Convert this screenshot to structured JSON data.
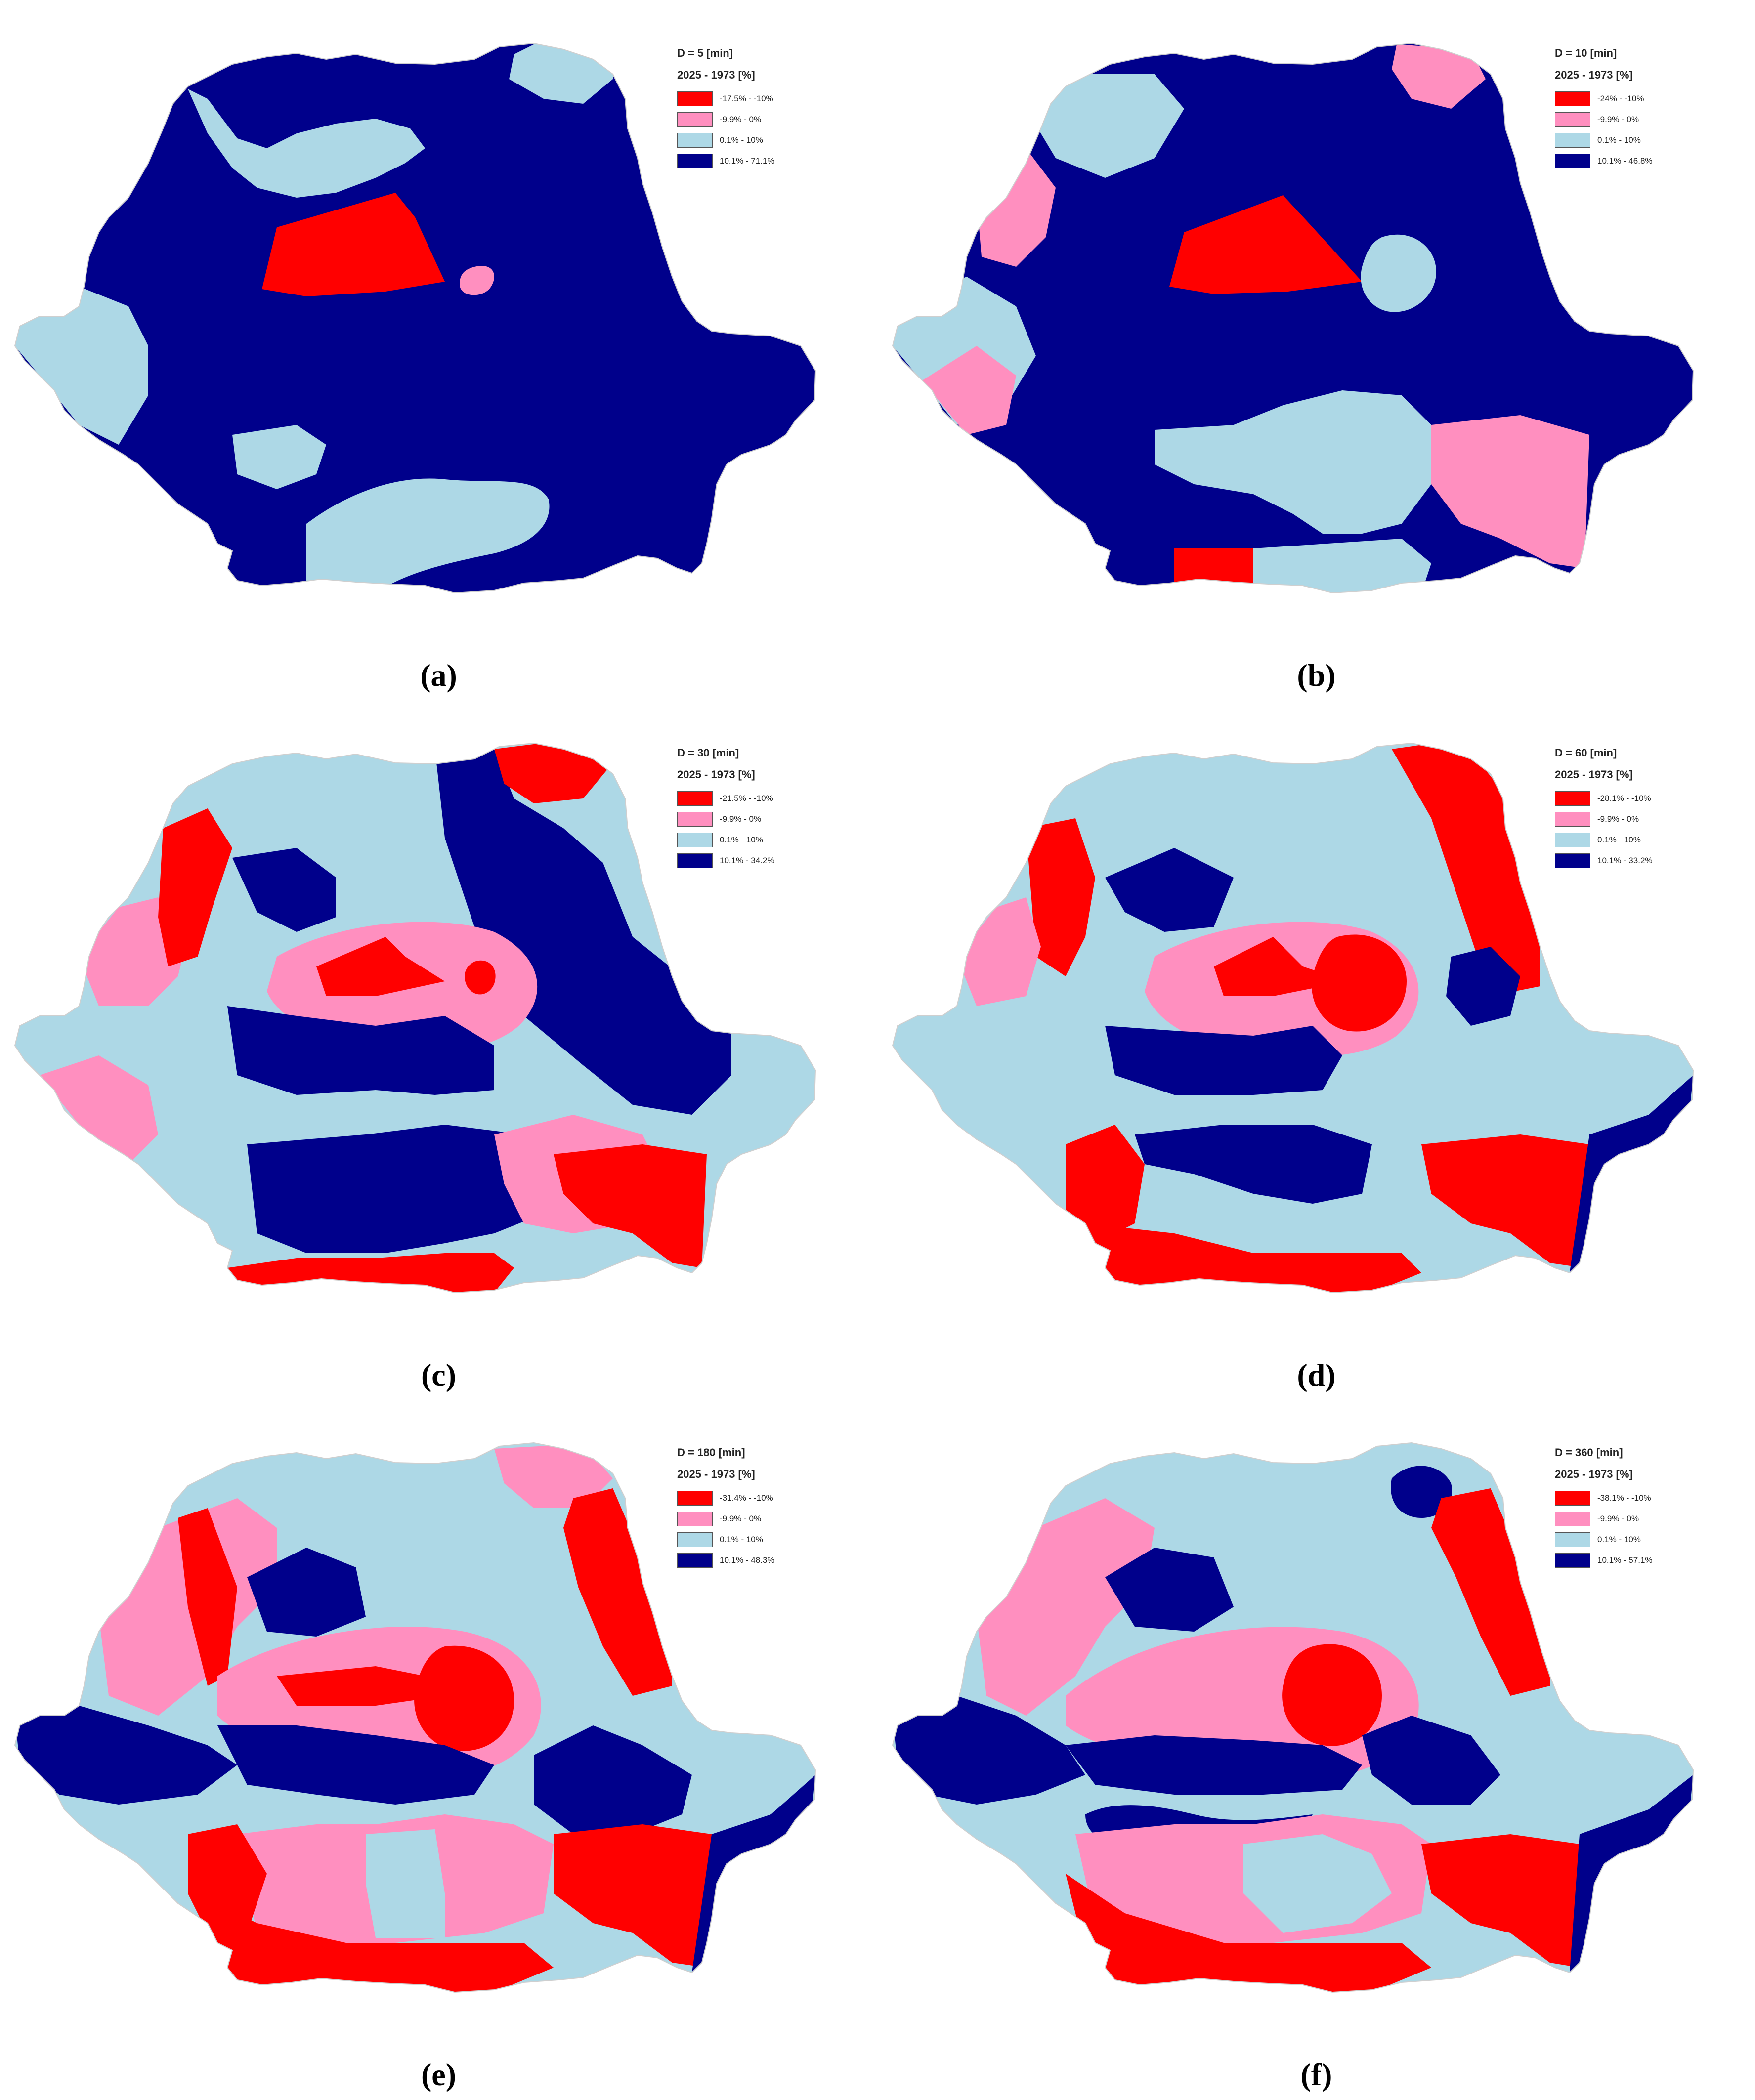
{
  "colors": {
    "red": "#ff0000",
    "pink": "#ff8fbf",
    "light_blue": "#add8e6",
    "navy": "#00008b"
  },
  "panels": [
    {
      "caption": "(a)",
      "duration_label": "D = 5 [min]",
      "period_label": "2025 - 1973 [%]",
      "legend": [
        {
          "color": "red",
          "label": "-17.5% - -10%"
        },
        {
          "color": "pink",
          "label": "-9.9% - 0%"
        },
        {
          "color": "light_blue",
          "label": "0.1% - 10%"
        },
        {
          "color": "navy",
          "label": "10.1% - 71.1%"
        }
      ]
    },
    {
      "caption": "(b)",
      "duration_label": "D = 10 [min]",
      "period_label": "2025 - 1973 [%]",
      "legend": [
        {
          "color": "red",
          "label": "-24% - -10%"
        },
        {
          "color": "pink",
          "label": "-9.9% - 0%"
        },
        {
          "color": "light_blue",
          "label": "0.1% - 10%"
        },
        {
          "color": "navy",
          "label": "10.1% - 46.8%"
        }
      ]
    },
    {
      "caption": "(c)",
      "duration_label": "D = 30 [min]",
      "period_label": "2025 - 1973 [%]",
      "legend": [
        {
          "color": "red",
          "label": "-21.5% - -10%"
        },
        {
          "color": "pink",
          "label": "-9.9% - 0%"
        },
        {
          "color": "light_blue",
          "label": "0.1% - 10%"
        },
        {
          "color": "navy",
          "label": "10.1% - 34.2%"
        }
      ]
    },
    {
      "caption": "(d)",
      "duration_label": "D = 60 [min]",
      "period_label": "2025 - 1973 [%]",
      "legend": [
        {
          "color": "red",
          "label": "-28.1% - -10%"
        },
        {
          "color": "pink",
          "label": "-9.9% - 0%"
        },
        {
          "color": "light_blue",
          "label": "0.1% - 10%"
        },
        {
          "color": "navy",
          "label": "10.1% - 33.2%"
        }
      ]
    },
    {
      "caption": "(e)",
      "duration_label": "D = 180 [min]",
      "period_label": "2025 - 1973 [%]",
      "legend": [
        {
          "color": "red",
          "label": "-31.4% - -10%"
        },
        {
          "color": "pink",
          "label": "-9.9% - 0%"
        },
        {
          "color": "light_blue",
          "label": "0.1% - 10%"
        },
        {
          "color": "navy",
          "label": "10.1% - 48.3%"
        }
      ]
    },
    {
      "caption": "(f)",
      "duration_label": "D = 360 [min]",
      "period_label": "2025 - 1973 [%]",
      "legend": [
        {
          "color": "red",
          "label": "-38.1% - -10%"
        },
        {
          "color": "pink",
          "label": "-9.9% - 0%"
        },
        {
          "color": "light_blue",
          "label": "0.1% - 10%"
        },
        {
          "color": "navy",
          "label": "10.1% - 57.1%"
        }
      ]
    }
  ]
}
